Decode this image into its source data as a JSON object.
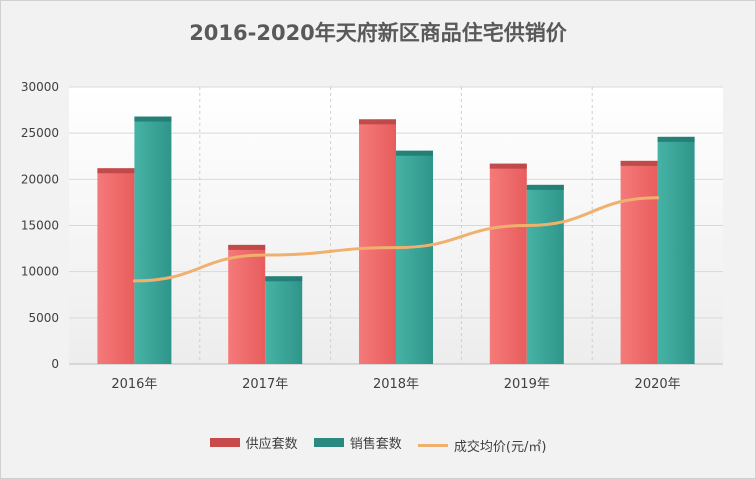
{
  "chart_data": {
    "type": "bar",
    "title": "2016-2020年天府新区商品住宅供销价",
    "categories": [
      "2016年",
      "2017年",
      "2018年",
      "2019年",
      "2020年"
    ],
    "series": [
      {
        "name": "供应套数",
        "kind": "bar",
        "color": "#f26b6b",
        "values": [
          21200,
          12900,
          26500,
          21700,
          22000
        ]
      },
      {
        "name": "销售套数",
        "kind": "bar",
        "color": "#3aa89a",
        "values": [
          26800,
          9500,
          23100,
          19400,
          24600
        ]
      },
      {
        "name": "成交均价(元/㎡)",
        "kind": "line",
        "color": "#f0b06e",
        "values": [
          9000,
          11800,
          12600,
          15000,
          18000
        ]
      }
    ],
    "ylim": [
      0,
      30000
    ],
    "yticks": [
      0,
      5000,
      10000,
      15000,
      20000,
      25000,
      30000
    ],
    "grid": true,
    "legend_position": "bottom"
  }
}
